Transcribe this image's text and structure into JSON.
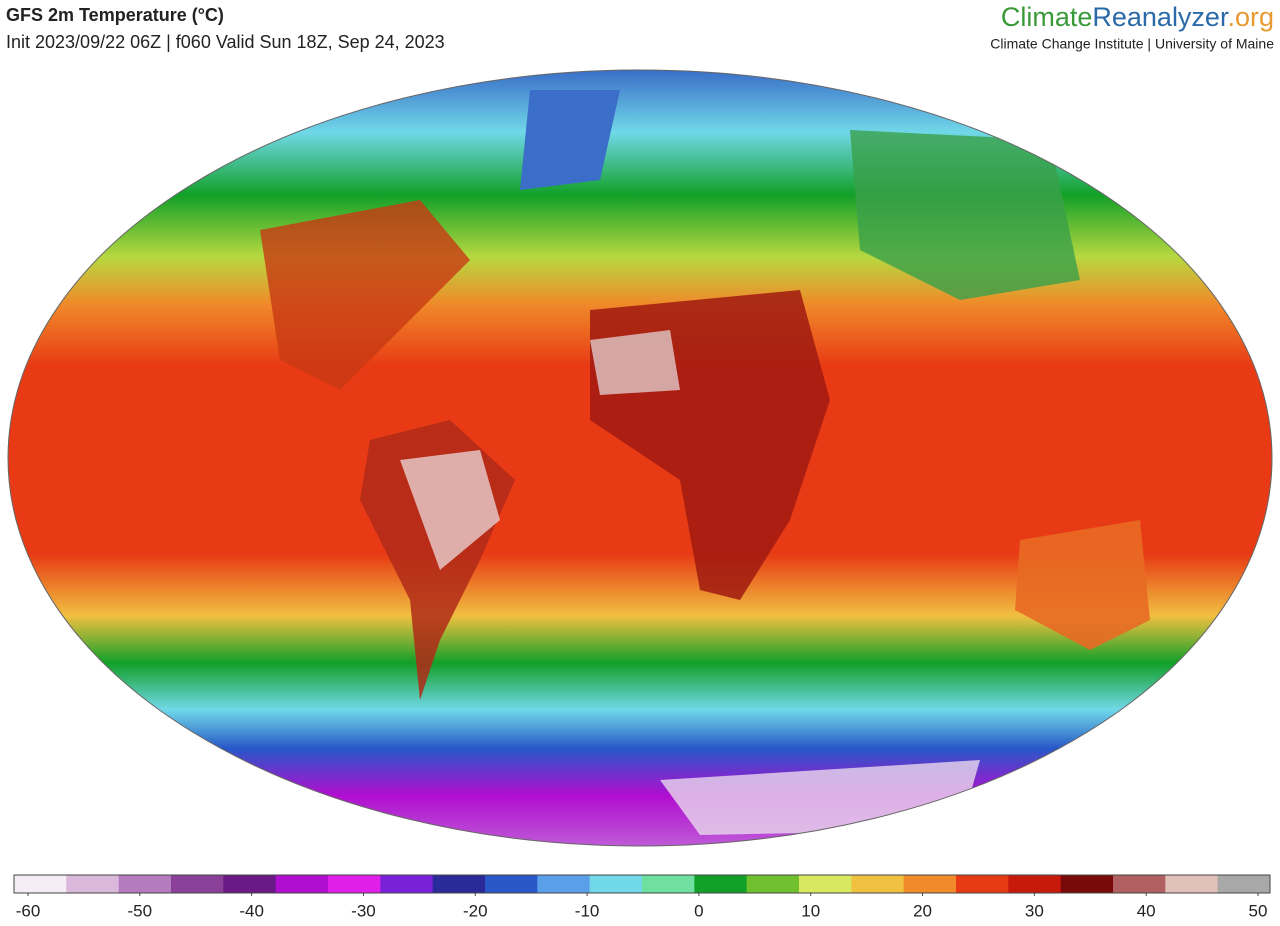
{
  "header": {
    "title": "GFS 2m Temperature (°C)",
    "subtitle": "Init 2023/09/22 06Z | f060 Valid Sun 18Z, Sep 24, 2023"
  },
  "logo": {
    "climate": "Climate",
    "reanalyzer": "Reanalyzer",
    "org": ".org",
    "tagline": "Climate Change Institute | University of Maine"
  },
  "colorbar": {
    "ticks": [
      -60,
      -50,
      -40,
      -30,
      -20,
      -10,
      0,
      10,
      20,
      30,
      40,
      50
    ],
    "colors": [
      "#f4eef4",
      "#d9b8dc",
      "#b57bbf",
      "#8a3f98",
      "#6a1a86",
      "#b00ed0",
      "#e020e8",
      "#7a20d8",
      "#2a2a9a",
      "#2858c8",
      "#5aa0e8",
      "#70d8e8",
      "#70e0a0",
      "#12a028",
      "#70c030",
      "#d8e860",
      "#f0c040",
      "#f08a2a",
      "#e83a14",
      "#c81a0a",
      "#7a0a0a",
      "#b06060",
      "#e0c0b8",
      "#a8a8a8"
    ]
  }
}
